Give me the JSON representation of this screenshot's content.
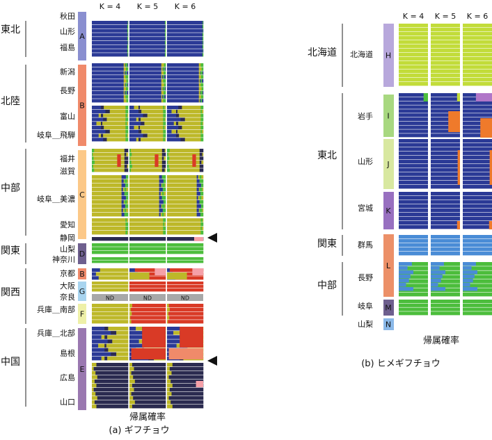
{
  "chart_data": [
    {
      "type": "structure-barplot",
      "caption": "(a) ギフチョウ",
      "xlabel": "帰属確率",
      "k_labels": [
        "K = 4",
        "K = 5",
        "K = 6"
      ],
      "regions": [
        "東北",
        "北陸",
        "中部",
        "関東",
        "関西",
        "中国"
      ],
      "places": [
        "秋田",
        "山形",
        "福島",
        "新潟",
        "長野",
        "富山",
        "岐阜＿飛騨",
        "福井",
        "滋賀",
        "岐阜＿美濃",
        "愛知",
        "静岡",
        "山梨",
        "神奈川",
        "京都",
        "大阪",
        "奈良",
        "兵庫＿南部",
        "兵庫＿北部",
        "島根",
        "広島",
        "山口"
      ],
      "groups": [
        "A",
        "B",
        "C",
        "D",
        "B",
        "G",
        "F",
        "E"
      ],
      "nd_label": "ND",
      "arrow_rows": [
        "静岡",
        "島根"
      ]
    },
    {
      "type": "structure-barplot",
      "caption": "(b) ヒメギフチョウ",
      "xlabel": "帰属確率",
      "k_labels": [
        "K = 4",
        "K = 5",
        "K = 6"
      ],
      "regions": [
        "北海道",
        "東北",
        "関東",
        "中部"
      ],
      "places": [
        "北海道",
        "岩手",
        "山形",
        "宮城",
        "群馬",
        "長野",
        "岐阜",
        "山梨"
      ],
      "groups": [
        "H",
        "I",
        "J",
        "K",
        "L",
        "M",
        "N"
      ]
    }
  ],
  "colors": {
    "blue": "#2b3a96",
    "olive": "#bdb829",
    "red": "#d93a26",
    "green": "#4cbd3c",
    "navy": "#2b2b50",
    "lime": "#c2dc3a",
    "sky": "#4a8cd6",
    "orange": "#ef7a2b",
    "pink": "#f5a0a8",
    "salmon": "#f08a6a",
    "purple": "#b076c8",
    "nd_gray": "#a8a8a8",
    "grpA": "#8a8fd0",
    "grpB": "#f08a6a",
    "grpC": "#fcc888",
    "grpD": "#6e5f8e",
    "grpG": "#a8d4ef",
    "grpF": "#eef0a8",
    "grpE": "#9a78b0",
    "grpH": "#b8a8dc",
    "grpI": "#a8d880",
    "grpJ": "#d8e8a0",
    "grpK": "#9870c0",
    "grpL": "#ec9068",
    "grpM": "#6e5f8e",
    "grpN": "#8ab8e8"
  }
}
